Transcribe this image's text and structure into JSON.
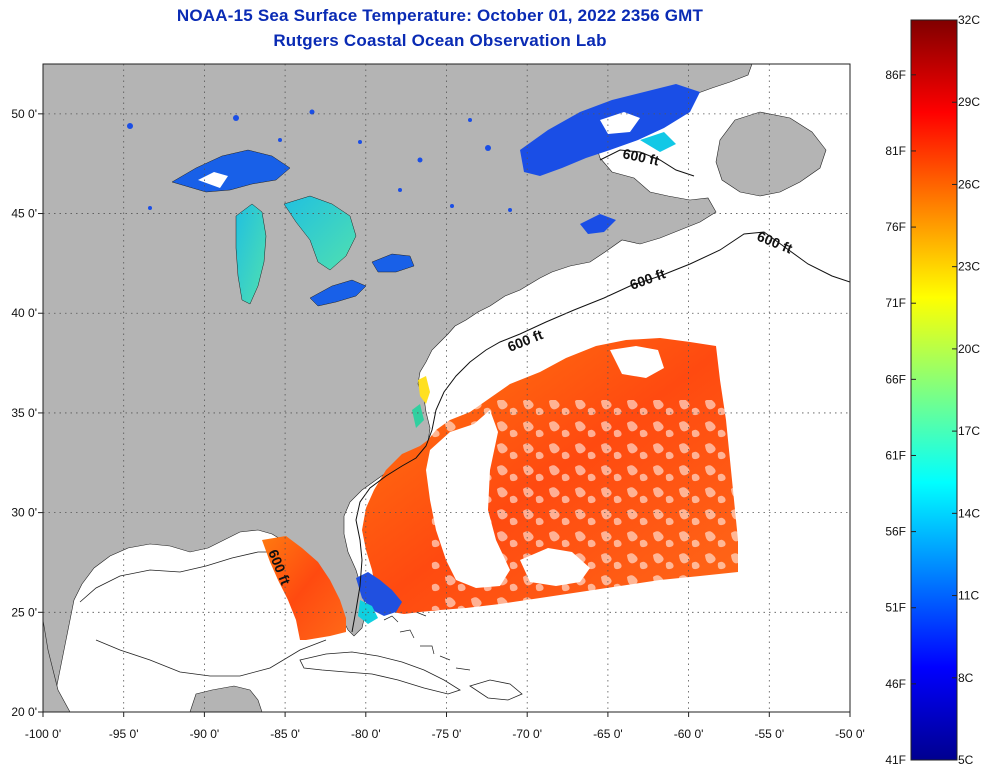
{
  "title": {
    "line1": "NOAA-15 Sea Surface Temperature:  October 01, 2022 2356 GMT",
    "line2": "Rutgers Coastal Ocean Observation Lab"
  },
  "map": {
    "lon_range": [
      -100,
      -50
    ],
    "lat_range": [
      20,
      52.5
    ],
    "lat_ticks": [
      "50 0'",
      "45 0'",
      "40 0'",
      "35 0'",
      "30 0'",
      "25 0'",
      "20 0'"
    ],
    "lat_tick_values": [
      50,
      45,
      40,
      35,
      30,
      25,
      20
    ],
    "lon_ticks": [
      "-100 0'",
      "-95 0'",
      "-90 0'",
      "-85 0'",
      "-80 0'",
      "-75 0'",
      "-70 0'",
      "-65 0'",
      "-60 0'",
      "-55 0'",
      "-50 0'"
    ],
    "lon_tick_values": [
      -100,
      -95,
      -90,
      -85,
      -80,
      -75,
      -70,
      -65,
      -60,
      -55,
      -50
    ],
    "grid": "dotted",
    "land_color": "#b4b4b4",
    "no_data_color": "#ffffff",
    "contour_label": "600 ft"
  },
  "colorbar": {
    "celsius_labels": [
      "32C",
      "29C",
      "26C",
      "23C",
      "20C",
      "17C",
      "14C",
      "11C",
      "8C",
      "5C"
    ],
    "celsius_values": [
      32,
      29,
      26,
      23,
      20,
      17,
      14,
      11,
      8,
      5
    ],
    "fahrenheit_labels": [
      "86F",
      "81F",
      "76F",
      "71F",
      "66F",
      "61F",
      "56F",
      "51F",
      "46F",
      "41F"
    ],
    "fahrenheit_values": [
      86,
      81,
      76,
      71,
      66,
      61,
      56,
      51,
      46,
      41
    ],
    "range_c": [
      5,
      32
    ],
    "colors": [
      "#00008f",
      "#0000ff",
      "#0080ff",
      "#00ffff",
      "#80ff80",
      "#ffff00",
      "#ff8000",
      "#ff0000",
      "#800000"
    ]
  }
}
